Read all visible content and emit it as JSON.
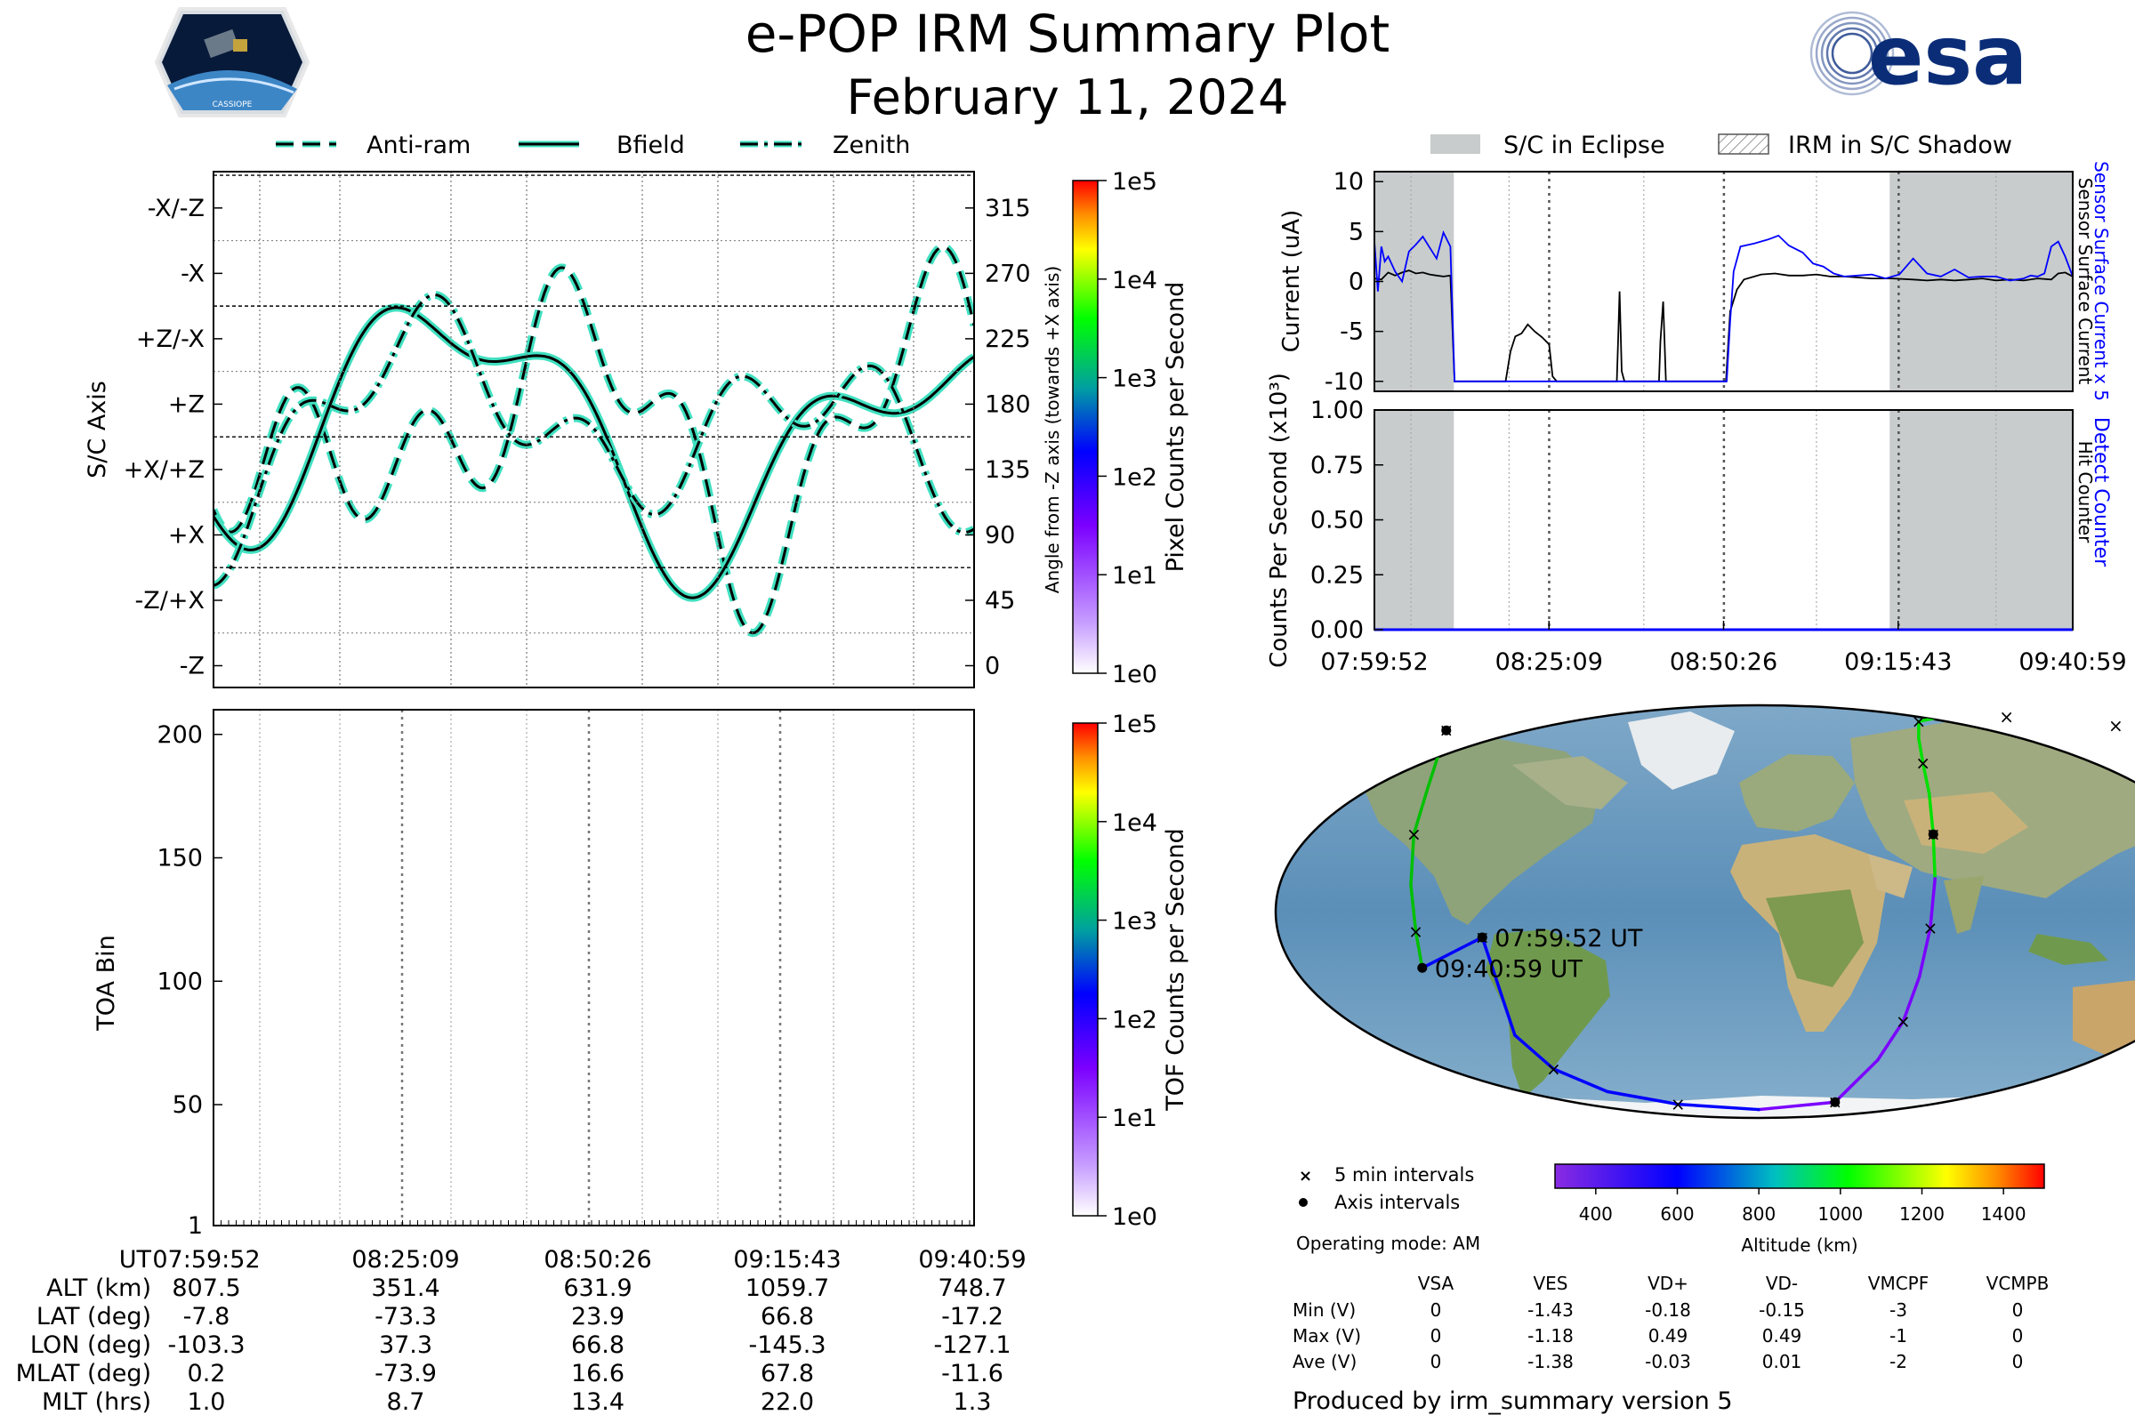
{
  "header": {
    "title": "e-POP IRM Summary Plot",
    "date": "February 11, 2024",
    "mission_logo_text": "CASSIOPE",
    "agency_logo_text": "esa"
  },
  "colors": {
    "line_cyan": "#40e0c0",
    "current_blue": "#0000ff",
    "eclipse_gray": "#c8cccc",
    "grid_gray": "#808080"
  },
  "legends": {
    "axis_legend": [
      "Anti-ram",
      "Bfield",
      "Zenith"
    ],
    "eclipse_legend": [
      "S/C in Eclipse",
      "IRM in S/C Shadow"
    ],
    "map_legend": [
      "5 min intervals",
      "Axis intervals"
    ]
  },
  "chart_data": [
    {
      "type": "line",
      "panel": "sc_axis",
      "ylabel": "S/C Axis",
      "y2label": "Angle from -Z axis (towards +X axis)",
      "y_ticks": [
        "-Z",
        "-Z/+X",
        "+X",
        "+X/+Z",
        "+Z",
        "+Z/-X",
        "-X",
        "-X/-Z"
      ],
      "y2_ticks": [
        "0",
        "45",
        "90",
        "135",
        "180",
        "225",
        "270",
        "315"
      ],
      "ylim": [
        -15,
        340
      ],
      "xlim": [
        "07:59:52",
        "09:40:59"
      ],
      "series": [
        {
          "name": "Anti-ram",
          "style": "dashed"
        },
        {
          "name": "Bfield",
          "style": "solid"
        },
        {
          "name": "Zenith",
          "style": "dashdot"
        }
      ],
      "colorbar": {
        "label": "Pixel Counts per Second",
        "ticks": [
          "1e0",
          "1e1",
          "1e2",
          "1e3",
          "1e4",
          "1e5"
        ],
        "scale": "log"
      }
    },
    {
      "type": "heatmap",
      "panel": "toa",
      "ylabel": "TOA Bin",
      "y_ticks": [
        "1",
        "50",
        "100",
        "150",
        "200"
      ],
      "ylim": [
        1,
        210
      ],
      "xlim": [
        "07:59:52",
        "09:40:59"
      ],
      "colorbar": {
        "label": "TOF Counts per Second",
        "ticks": [
          "1e0",
          "1e1",
          "1e2",
          "1e3",
          "1e4",
          "1e5"
        ],
        "scale": "log"
      }
    },
    {
      "type": "line",
      "panel": "current",
      "ylabel": "Current (uA)",
      "y2label_top": "Sensor Surface Current x 5",
      "y2label_bottom": "Sensor Surface Current",
      "y_ticks": [
        "-10",
        "-5",
        "0",
        "5",
        "10"
      ],
      "ylim": [
        -11,
        11
      ],
      "xlim": [
        0,
        101.1
      ],
      "eclipse_intervals": [
        [
          0,
          11.5
        ],
        [
          74.6,
          101.1
        ]
      ],
      "series": [
        {
          "name": "Sensor Surface Current",
          "color": "#000000",
          "x": [
            0,
            1,
            2,
            3,
            4,
            5,
            6,
            7,
            8,
            9,
            10,
            11,
            11.6,
            19,
            19.7,
            20.4,
            21.3,
            22.2,
            23.2,
            24.3,
            25.3,
            25.8,
            26.4,
            35.1,
            35.3,
            35.5,
            35.8,
            36.2,
            41.2,
            41.4,
            41.8,
            42.2,
            50.9,
            51.5,
            52.5,
            53.5,
            55,
            56,
            58,
            60,
            62,
            64,
            66,
            68,
            70,
            72,
            75,
            78,
            80,
            82,
            84,
            86,
            88,
            90,
            92,
            94,
            96,
            98,
            99,
            100,
            101.1
          ],
          "y": [
            0.3,
            0.2,
            0.9,
            0.6,
            0.9,
            1.1,
            0.8,
            0.9,
            0.7,
            0.6,
            0.5,
            0.6,
            -10,
            -10,
            -7,
            -5.5,
            -5.2,
            -4.3,
            -5,
            -5.6,
            -6.3,
            -9.5,
            -10,
            -10,
            -5.5,
            -1,
            -9,
            -10,
            -10,
            -6,
            -2,
            -10,
            -10,
            -3,
            -0.8,
            0.2,
            0.5,
            0.7,
            0.8,
            0.6,
            0.6,
            0.7,
            0.5,
            0.5,
            0.4,
            0.3,
            0.3,
            0.2,
            0.1,
            0.2,
            0.1,
            0.2,
            0.3,
            0.1,
            0.2,
            0.1,
            0.3,
            0.2,
            0.8,
            0.9,
            0.5
          ]
        },
        {
          "name": "Sensor Surface Current x 5",
          "color": "#0000ff",
          "x": [
            0,
            0.5,
            1,
            1.5,
            2,
            3,
            4,
            5,
            6,
            7,
            8,
            9,
            10,
            11,
            11.6,
            51,
            51.5,
            52,
            53,
            55,
            57,
            58.5,
            60,
            62,
            63.5,
            65,
            66.5,
            68,
            70,
            72,
            74,
            76,
            78,
            80,
            82,
            84,
            86,
            88,
            90,
            92,
            94,
            95,
            96,
            97,
            98,
            99,
            100,
            101.1
          ],
          "y": [
            4,
            -1,
            3.5,
            2,
            2.5,
            1,
            0,
            3,
            3.7,
            4.5,
            3.4,
            2.3,
            4.9,
            3.5,
            -10,
            -10,
            -4,
            1,
            3.5,
            3.8,
            4.2,
            4.6,
            3.6,
            2.9,
            1.8,
            1.5,
            0.8,
            0.5,
            0.6,
            0.7,
            0.3,
            0.7,
            2.3,
            0.8,
            0.5,
            1.2,
            0.4,
            0.5,
            0.5,
            0.1,
            0.3,
            0.6,
            0.5,
            0.8,
            3.5,
            4,
            2.5,
            0.5
          ]
        }
      ]
    },
    {
      "type": "line",
      "panel": "counts",
      "ylabel": "Counts Per Second (x10³)",
      "y2label_top": "Detect Counter",
      "y2label_bottom": "Hit Counter",
      "y_ticks": [
        "0.00",
        "0.25",
        "0.50",
        "0.75",
        "1.00"
      ],
      "ylim": [
        0,
        1
      ],
      "xlim": [
        0,
        101.1
      ],
      "x_ticks": [
        "07:59:52",
        "08:25:09",
        "08:50:26",
        "09:15:43",
        "09:40:59"
      ],
      "series": [
        {
          "name": "Detect Counter",
          "values": [
            0,
            0
          ]
        }
      ]
    },
    {
      "type": "scatter",
      "panel": "ground_track",
      "colorbar": {
        "label": "Altitude (km)",
        "ticks": [
          "400",
          "600",
          "800",
          "1000",
          "1200",
          "1400"
        ],
        "range": [
          300,
          1500
        ]
      },
      "track": [
        {
          "lon": 170,
          "lat": 70
        },
        {
          "lon": 150,
          "lat": 74
        },
        {
          "lon": 125,
          "lat": 77
        },
        {
          "lon": 96,
          "lat": 78
        },
        {
          "lon": 78,
          "lat": 73
        },
        {
          "lon": 72,
          "lat": 62
        },
        {
          "lon": 69,
          "lat": 50
        },
        {
          "lon": 68,
          "lat": 38
        },
        {
          "lon": 66.8,
          "lat": 23.9
        },
        {
          "lon": 66,
          "lat": 10
        },
        {
          "lon": 64,
          "lat": -5
        },
        {
          "lon": 61,
          "lat": -20
        },
        {
          "lon": 57,
          "lat": -35
        },
        {
          "lon": 50,
          "lat": -50
        },
        {
          "lon": 37.3,
          "lat": -73.3
        },
        {
          "lon": 0,
          "lat": -80
        },
        {
          "lon": -40,
          "lat": -75
        },
        {
          "lon": -70,
          "lat": -66
        },
        {
          "lon": -88,
          "lat": -54
        },
        {
          "lon": -98,
          "lat": -40
        },
        {
          "lon": -103.3,
          "lat": -7.8
        },
        {
          "lon": -127.1,
          "lat": -17.2
        },
        {
          "lon": -128,
          "lat": -6
        },
        {
          "lon": -130,
          "lat": 8
        },
        {
          "lon": -132,
          "lat": 24
        },
        {
          "lon": -133,
          "lat": 40
        },
        {
          "lon": -145.3,
          "lat": 66.8
        },
        {
          "lon": -155,
          "lat": 73
        }
      ],
      "axis_points": [
        {
          "lon": -103.3,
          "lat": -7.8,
          "label": "07:59:52 UT"
        },
        {
          "lon": 37.3,
          "lat": -73.3
        },
        {
          "lon": 66.8,
          "lat": 23.9
        },
        {
          "lon": -145.3,
          "lat": 66.8
        },
        {
          "lon": -127.1,
          "lat": -17.2,
          "label": "09:40:59 UT"
        }
      ]
    }
  ],
  "info_table": {
    "rows": [
      {
        "label": "UT",
        "values": [
          "07:59:52",
          "08:25:09",
          "08:50:26",
          "09:15:43",
          "09:40:59"
        ]
      },
      {
        "label": "ALT (km)",
        "values": [
          "807.5",
          "351.4",
          "631.9",
          "1059.7",
          "748.7"
        ]
      },
      {
        "label": "LAT (deg)",
        "values": [
          "-7.8",
          "-73.3",
          "23.9",
          "66.8",
          "-17.2"
        ]
      },
      {
        "label": "LON (deg)",
        "values": [
          "-103.3",
          "37.3",
          "66.8",
          "-145.3",
          "-127.1"
        ]
      },
      {
        "label": "MLAT (deg)",
        "values": [
          "0.2",
          "-73.9",
          "16.6",
          "67.8",
          "-11.6"
        ]
      },
      {
        "label": "MLT (hrs)",
        "values": [
          "1.0",
          "8.7",
          "13.4",
          "22.0",
          "1.3"
        ]
      }
    ]
  },
  "operating_mode": "Operating mode: AM",
  "voltage_table": {
    "columns": [
      "VSA",
      "VES",
      "VD+",
      "VD-",
      "VMCPF",
      "VCMPB"
    ],
    "rows": [
      {
        "label": "Min (V)",
        "values": [
          "0",
          "-1.43",
          "-0.18",
          "-0.15",
          "-3",
          "0"
        ]
      },
      {
        "label": "Max (V)",
        "values": [
          "0",
          "-1.18",
          "0.49",
          "0.49",
          "-1",
          "0"
        ]
      },
      {
        "label": "Ave (V)",
        "values": [
          "0",
          "-1.38",
          "-0.03",
          "0.01",
          "-2",
          "0"
        ]
      }
    ]
  },
  "footer": "Produced by irm_summary version 5"
}
